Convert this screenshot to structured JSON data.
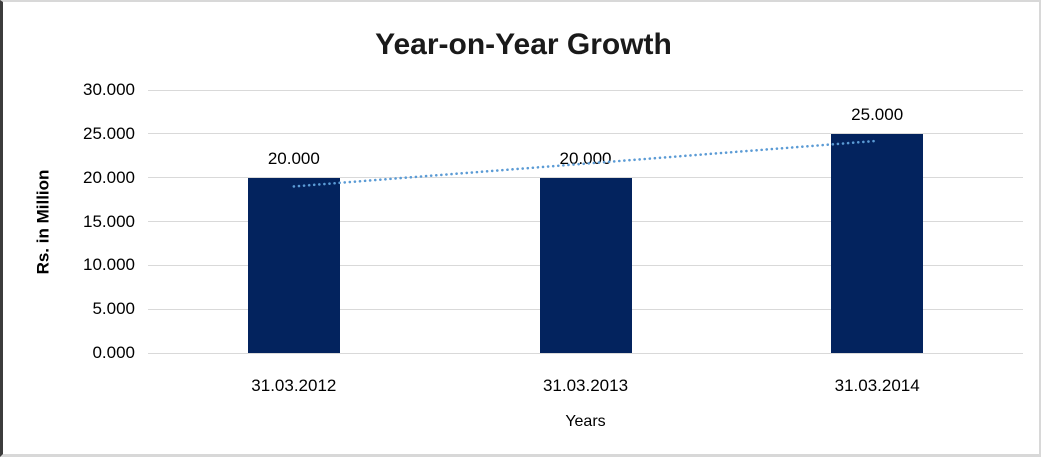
{
  "chart_data": {
    "type": "bar",
    "title": "Year-on-Year Growth",
    "xlabel": "Years",
    "ylabel": "Rs. in Million",
    "categories": [
      "31.03.2012",
      "31.03.2013",
      "31.03.2014"
    ],
    "values": [
      20,
      20,
      25
    ],
    "data_labels": [
      "20.000",
      "20.000",
      "25.000"
    ],
    "ylim": [
      0,
      30
    ],
    "ytick_values": [
      0,
      5,
      10,
      15,
      20,
      25,
      30
    ],
    "ytick_labels": [
      "0.000",
      "5.000",
      "10.000",
      "15.000",
      "20.000",
      "25.000",
      "30.000"
    ],
    "grid": "horizontal",
    "legend": "none",
    "trendline": {
      "style": "dotted",
      "start_value": 19.0,
      "end_value": 24.2,
      "from_category": "31.03.2012",
      "to_category": "31.03.2014"
    },
    "colors": {
      "bar": "#03235e",
      "trendline": "#5b9bd5",
      "gridline": "#d9d9d9",
      "text": "#000000",
      "frame_light": "#d8d8d8",
      "frame_dark": "#3c3c3c"
    }
  }
}
